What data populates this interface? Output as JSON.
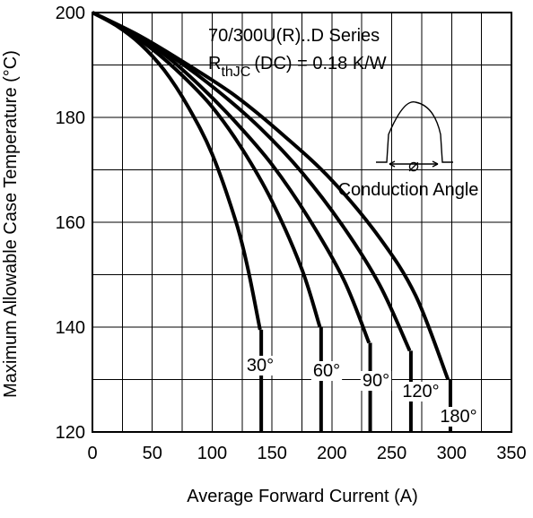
{
  "chart_data": {
    "type": "line",
    "xlabel": "Average Forward Current (A)",
    "ylabel": "Maximum Allowable Case Temperature (°C)",
    "xlim": [
      0,
      350
    ],
    "ylim": [
      120,
      200
    ],
    "xticks": [
      0,
      50,
      100,
      150,
      200,
      250,
      300,
      350
    ],
    "yticks": [
      120,
      140,
      160,
      180,
      200
    ],
    "x_tick_labels": [
      "0",
      "50",
      "100",
      "150",
      "200",
      "250",
      "300",
      "350"
    ],
    "y_tick_labels": [
      "120",
      "140",
      "160",
      "180",
      "200"
    ],
    "grid": true,
    "annotations": {
      "title_line1": "70/300U(R)..D Series",
      "rth_main": "R",
      "rth_sub": "thJC",
      "rth_tail": "(DC) = 0.18 K/W",
      "inset_symbol": "⌀",
      "inset_caption": "Conduction Angle"
    },
    "series": [
      {
        "name": "30°",
        "points": [
          [
            0,
            200
          ],
          [
            20,
            197.5
          ],
          [
            40,
            194
          ],
          [
            60,
            189
          ],
          [
            80,
            182
          ],
          [
            100,
            173
          ],
          [
            120,
            160
          ],
          [
            130,
            151
          ],
          [
            140,
            139.5
          ]
        ],
        "end_x": 141,
        "bottom_y": 120
      },
      {
        "name": "60°",
        "points": [
          [
            0,
            200
          ],
          [
            25,
            197
          ],
          [
            50,
            193
          ],
          [
            75,
            188
          ],
          [
            100,
            182
          ],
          [
            125,
            174
          ],
          [
            150,
            164
          ],
          [
            175,
            151
          ],
          [
            190,
            140
          ]
        ],
        "end_x": 191,
        "bottom_y": 120
      },
      {
        "name": "90°",
        "points": [
          [
            0,
            200
          ],
          [
            30,
            196.5
          ],
          [
            60,
            192
          ],
          [
            90,
            186
          ],
          [
            120,
            179
          ],
          [
            150,
            171
          ],
          [
            180,
            161
          ],
          [
            210,
            149
          ],
          [
            231,
            137
          ]
        ],
        "end_x": 232,
        "bottom_y": 120
      },
      {
        "name": "120°",
        "points": [
          [
            0,
            200
          ],
          [
            35,
            196
          ],
          [
            70,
            191
          ],
          [
            105,
            185
          ],
          [
            140,
            178
          ],
          [
            175,
            169.5
          ],
          [
            210,
            159
          ],
          [
            240,
            148
          ],
          [
            265,
            135.5
          ]
        ],
        "end_x": 266,
        "bottom_y": 120
      },
      {
        "name": "180°",
        "points": [
          [
            0,
            200
          ],
          [
            40,
            195.5
          ],
          [
            80,
            190
          ],
          [
            120,
            184
          ],
          [
            160,
            176.5
          ],
          [
            200,
            168
          ],
          [
            240,
            157
          ],
          [
            270,
            146
          ],
          [
            297,
            130
          ]
        ],
        "end_x": 299,
        "bottom_y": 120
      }
    ]
  }
}
